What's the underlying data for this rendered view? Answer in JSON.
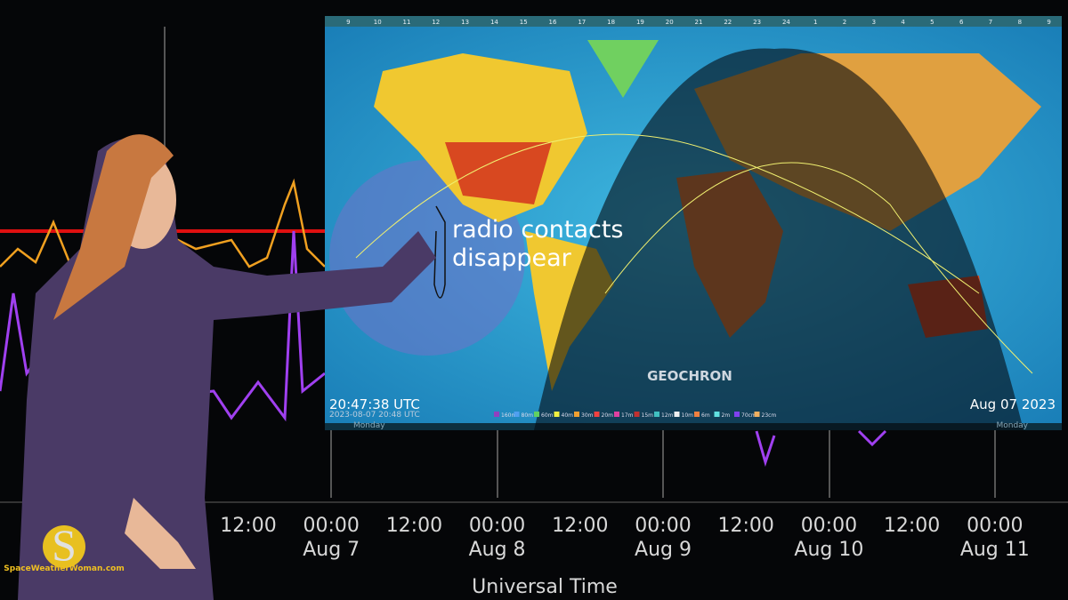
{
  "time_axis": {
    "title": "Universal Time",
    "ticks": [
      {
        "time": "12:00"
      },
      {
        "time": "00:00",
        "date": "Aug 7"
      },
      {
        "time": "12:00"
      },
      {
        "time": "00:00",
        "date": "Aug 8"
      },
      {
        "time": "12:00"
      },
      {
        "time": "00:00",
        "date": "Aug 9"
      },
      {
        "time": "12:00"
      },
      {
        "time": "00:00",
        "date": "Aug 10"
      },
      {
        "time": "12:00"
      },
      {
        "time": "00:00",
        "date": "Aug 11"
      }
    ]
  },
  "map": {
    "brand": "GEOCHRON",
    "annotation": [
      "radio contacts",
      "disappear"
    ],
    "utc_clock": "20:47:38 UTC",
    "timestamp": "2023-08-07 20:48 UTC",
    "date": "Aug 07 2023",
    "day_left": "Monday",
    "day_right": "Monday",
    "hour_scale": [
      "9",
      "10",
      "11",
      "12",
      "13",
      "14",
      "15",
      "16",
      "17",
      "18",
      "19",
      "20",
      "21",
      "22",
      "23",
      "24",
      "1",
      "2",
      "3",
      "4",
      "5",
      "6",
      "7",
      "8",
      "9"
    ],
    "bands": [
      "160m",
      "80m",
      "60m",
      "40m",
      "30m",
      "20m",
      "17m",
      "15m",
      "12m",
      "10m",
      "6m",
      "2m",
      "70cm",
      "23cm"
    ]
  },
  "logo": "SpaceWeatherWoman.com"
}
